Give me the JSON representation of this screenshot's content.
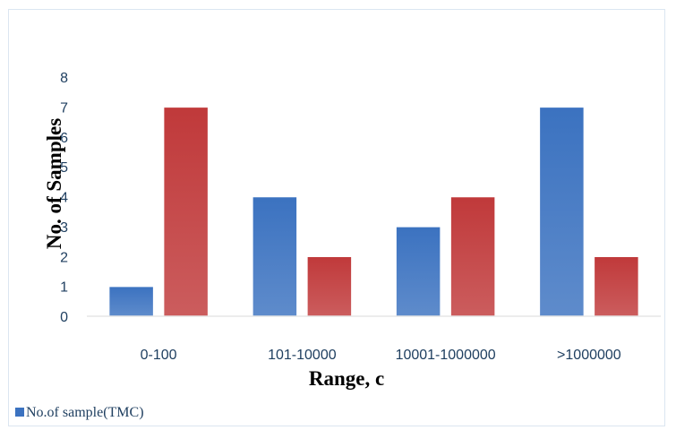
{
  "chart_data": {
    "type": "bar",
    "title": "",
    "xlabel": "Range, c",
    "ylabel": "No. of Samples",
    "categories": [
      "0-100",
      "101-10000",
      "10001-1000000",
      ">1000000"
    ],
    "series": [
      {
        "values": [
          1,
          4,
          3,
          7
        ],
        "color": "#3b72c0"
      },
      {
        "values": [
          7,
          2,
          4,
          2
        ],
        "color": "#c0393a"
      }
    ],
    "ylim": [
      0,
      8
    ],
    "yticks": [
      0,
      1,
      2,
      3,
      4,
      5,
      6,
      7,
      8
    ],
    "grid": false,
    "legend": {
      "position": "bottom-left",
      "entries": [
        "No.of sample(TMC)"
      ]
    }
  }
}
